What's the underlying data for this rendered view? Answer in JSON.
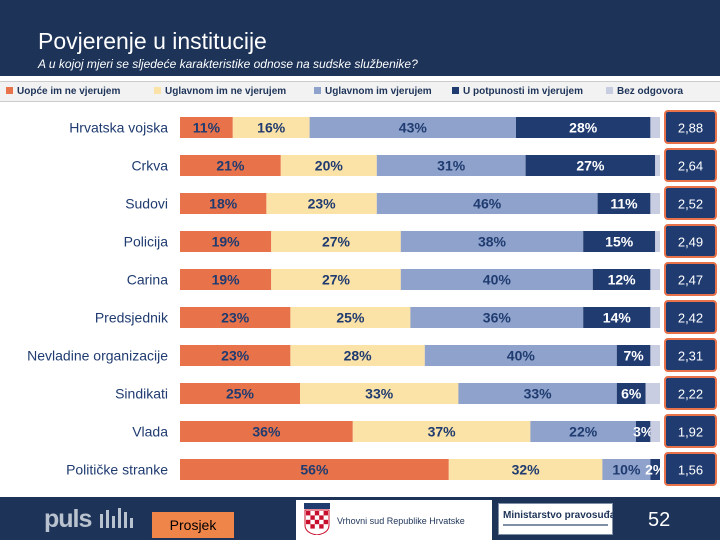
{
  "header": {
    "title": "Povjerenje u institucije",
    "subtitle": "A u kojoj mjeri se sljedeće karakteristike odnose na sudske službenike?"
  },
  "footer": {
    "logo": "puls",
    "average_button": "Prosjek",
    "court_label": "Vrhovni sud Republike Hrvatske",
    "ministry_label": "Ministarstvo pravosuđa",
    "page_number": "52"
  },
  "colors": {
    "s1": "#e8734a",
    "s2": "#fbe2a6",
    "s3": "#8ea2cb",
    "s4": "#1f3b70",
    "s5": "#c8cde2",
    "avg_box": "#1f3b70",
    "avg_border": "#e8734a",
    "header": "#1d3358"
  },
  "chart_data": {
    "type": "bar",
    "orientation": "horizontal",
    "stacked": true,
    "title": "Povjerenje u institucije",
    "categories": [
      "Hrvatska vojska",
      "Crkva",
      "Sudovi",
      "Policija",
      "Carina",
      "Predsjednik",
      "Nevladine organizacije",
      "Sindikati",
      "Vlada",
      "Političke stranke"
    ],
    "series": [
      {
        "name": "Uopće im ne vjerujem",
        "values": [
          11,
          21,
          18,
          19,
          19,
          23,
          23,
          25,
          36,
          56
        ],
        "labels": [
          "11%",
          "21%",
          "18%",
          "19%",
          "19%",
          "23%",
          "23%",
          "25%",
          "36%",
          "56%"
        ]
      },
      {
        "name": "Uglavnom im ne vjerujem",
        "values": [
          16,
          20,
          23,
          27,
          27,
          25,
          28,
          33,
          37,
          32
        ],
        "labels": [
          "16%",
          "20%",
          "23%",
          "27%",
          "27%",
          "25%",
          "28%",
          "33%",
          "37%",
          "32%"
        ]
      },
      {
        "name": "Uglavnom im vjerujem",
        "values": [
          43,
          31,
          46,
          38,
          40,
          36,
          40,
          33,
          22,
          10
        ],
        "labels": [
          "43%",
          "31%",
          "46%",
          "38%",
          "40%",
          "36%",
          "40%",
          "33%",
          "22%",
          "10%"
        ]
      },
      {
        "name": "U potpunosti im vjerujem",
        "values": [
          28,
          27,
          11,
          15,
          12,
          14,
          7,
          6,
          3,
          2
        ],
        "labels": [
          "28%",
          "27%",
          "11%",
          "15%",
          "12%",
          "14%",
          "7%",
          "6%",
          "3%",
          "2%"
        ]
      },
      {
        "name": "Bez odgovora",
        "values": [
          2,
          1,
          2,
          1,
          2,
          2,
          2,
          3,
          2,
          0
        ],
        "labels": [
          "",
          "",
          "",
          "",
          "",
          "",
          "",
          "",
          "",
          ""
        ]
      }
    ],
    "averages": [
      "2,88",
      "2,64",
      "2,52",
      "2,49",
      "2,47",
      "2,42",
      "2,31",
      "2,22",
      "1,92",
      "1,56"
    ],
    "xlim": [
      0,
      100
    ],
    "grid": false,
    "legend_position": "top"
  }
}
